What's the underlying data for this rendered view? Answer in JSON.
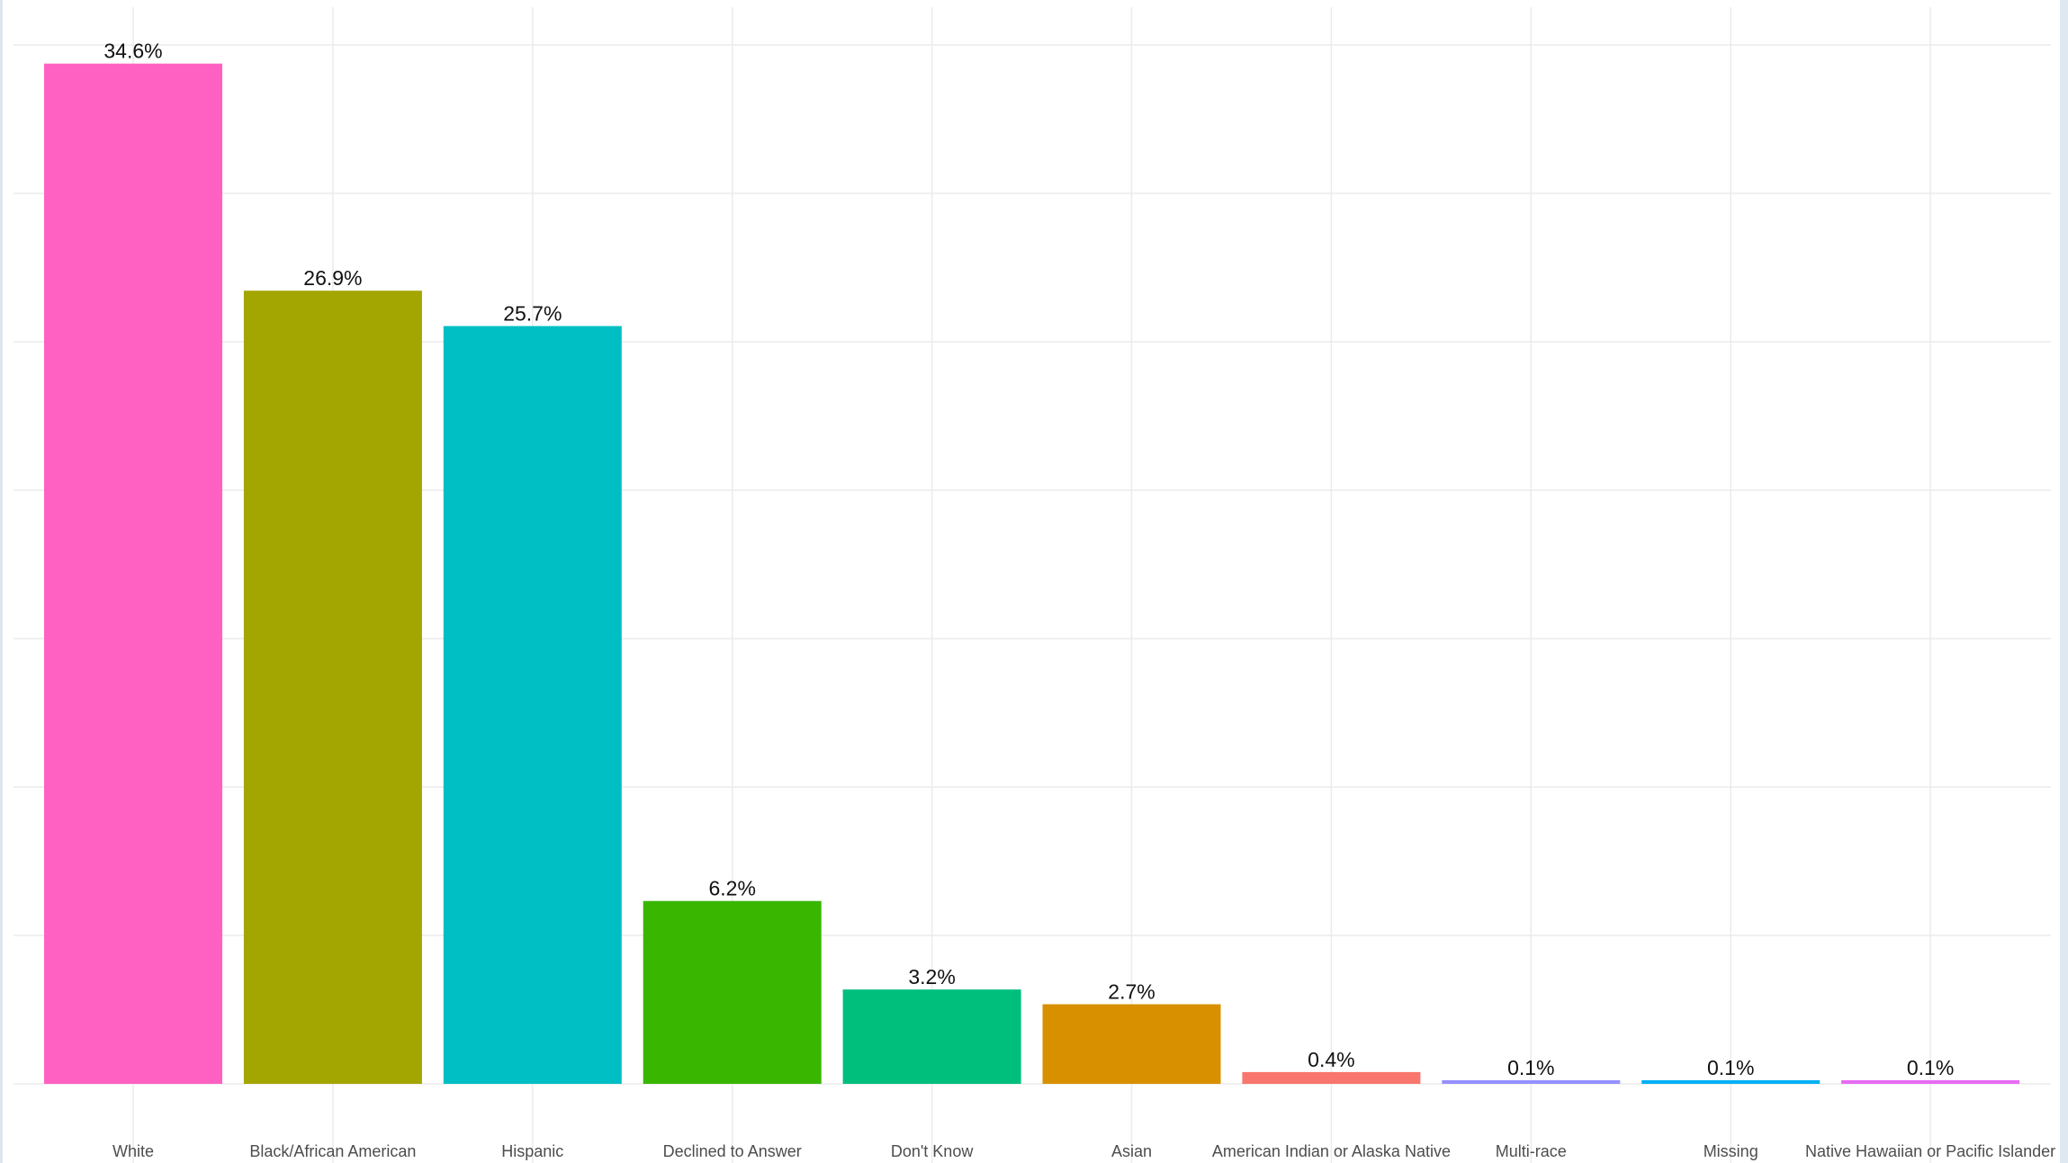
{
  "chart_data": {
    "type": "bar",
    "categories": [
      "White",
      "Black/African American",
      "Hispanic",
      "Declined to Answer",
      "Don't Know",
      "Asian",
      "American Indian or Alaska Native",
      "Multi-race",
      "Missing",
      "Native Hawaiian or Pacific Islander"
    ],
    "values": [
      34.6,
      26.9,
      25.7,
      6.2,
      3.2,
      2.7,
      0.4,
      0.1,
      0.1,
      0.1
    ],
    "labels": [
      "34.6%",
      "26.9%",
      "25.7%",
      "6.2%",
      "3.2%",
      "2.7%",
      "0.4%",
      "0.1%",
      "0.1%",
      "0.1%"
    ],
    "colors": [
      "#FF61C3",
      "#A3A500",
      "#00BFC4",
      "#39B600",
      "#00BF7D",
      "#D89000",
      "#F8766D",
      "#9590FF",
      "#00B0F6",
      "#E76BF3"
    ],
    "title": "",
    "xlabel": "",
    "ylabel": "",
    "ylim": [
      0,
      36.3
    ],
    "grid": true,
    "legend": "none"
  }
}
